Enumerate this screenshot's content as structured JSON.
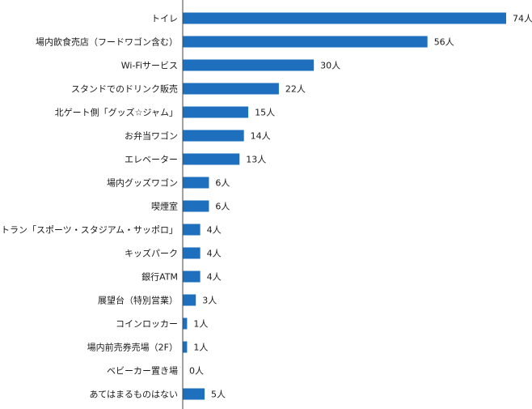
{
  "chart_data": {
    "type": "bar",
    "orientation": "horizontal",
    "unit": "人",
    "categories": [
      "トイレ",
      "場内飲食売店（フードワゴン含む）",
      "Wi-Fiサービス",
      "スタンドでのドリンク販売",
      "北ゲート側「グッズ☆ジャム」",
      "お弁当ワゴン",
      "エレベーター",
      "場内グッズワゴン",
      "喫煙室",
      "レストラン「スポーツ・スタジアム・サッポロ」",
      "キッズパーク",
      "銀行ATM",
      "展望台（特別営業）",
      "コインロッカー",
      "場内前売券売場（2F）",
      "ベビーカー置き場",
      "あてはまるものはない"
    ],
    "values": [
      74,
      56,
      30,
      22,
      15,
      14,
      13,
      6,
      6,
      4,
      4,
      4,
      3,
      1,
      1,
      0,
      5
    ],
    "value_labels": [
      "74人",
      "56人",
      "30人",
      "22人",
      "15人",
      "14人",
      "13人",
      "6人",
      "6人",
      "4人",
      "4人",
      "4人",
      "3人",
      "1人",
      "1人",
      "0人",
      "5人"
    ],
    "xlim": [
      0,
      74
    ],
    "grid": false,
    "legend": "none",
    "bar_color": "#1e6fbe",
    "axis_color": "#444444"
  }
}
